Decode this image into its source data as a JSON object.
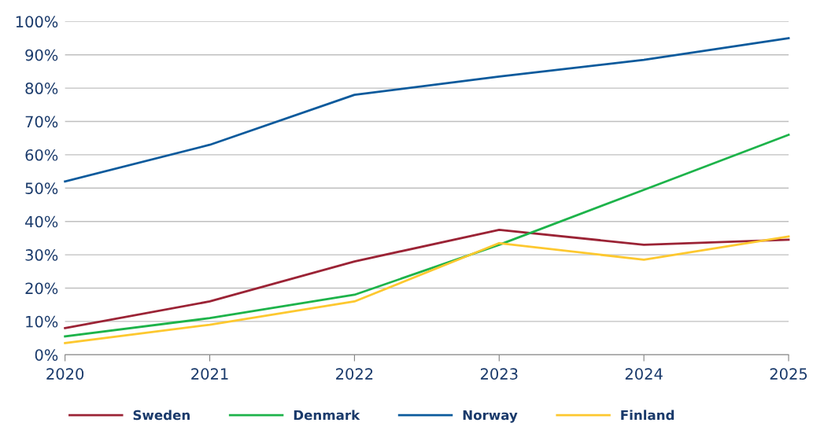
{
  "chart_data": {
    "type": "line",
    "x": [
      2020,
      2021,
      2022,
      2023,
      2024,
      2025
    ],
    "xlim": [
      2020,
      2025
    ],
    "xticks": [
      2020,
      2021,
      2022,
      2023,
      2024,
      2025
    ],
    "ylim": [
      0,
      100
    ],
    "yticks": [
      {
        "value": 0,
        "label": "0%"
      },
      {
        "value": 10,
        "label": "10%"
      },
      {
        "value": 20,
        "label": "20%"
      },
      {
        "value": 30,
        "label": "30%"
      },
      {
        "value": 40,
        "label": "40%"
      },
      {
        "value": 50,
        "label": "50%"
      },
      {
        "value": 60,
        "label": "60%"
      },
      {
        "value": 70,
        "label": "70%"
      },
      {
        "value": 80,
        "label": "80%"
      },
      {
        "value": 90,
        "label": "90%"
      },
      {
        "value": 100,
        "label": "100%"
      }
    ],
    "grid": "y",
    "legend": "bottom",
    "marker": "none",
    "line_style": "solid",
    "series": [
      {
        "name": "Sweden",
        "color": "#9b2335",
        "values": [
          8,
          16,
          28,
          37.5,
          33,
          34.5
        ]
      },
      {
        "name": "Denmark",
        "color": "#1db34a",
        "values": [
          5.5,
          11,
          18,
          33,
          49.5,
          66
        ]
      },
      {
        "name": "Norway",
        "color": "#0b5a9c",
        "values": [
          52,
          63,
          78,
          83.5,
          88.5,
          95
        ]
      },
      {
        "name": "Finland",
        "color": "#fdc82f",
        "values": [
          3.5,
          9,
          16,
          33.5,
          28.5,
          35.5
        ]
      }
    ]
  }
}
